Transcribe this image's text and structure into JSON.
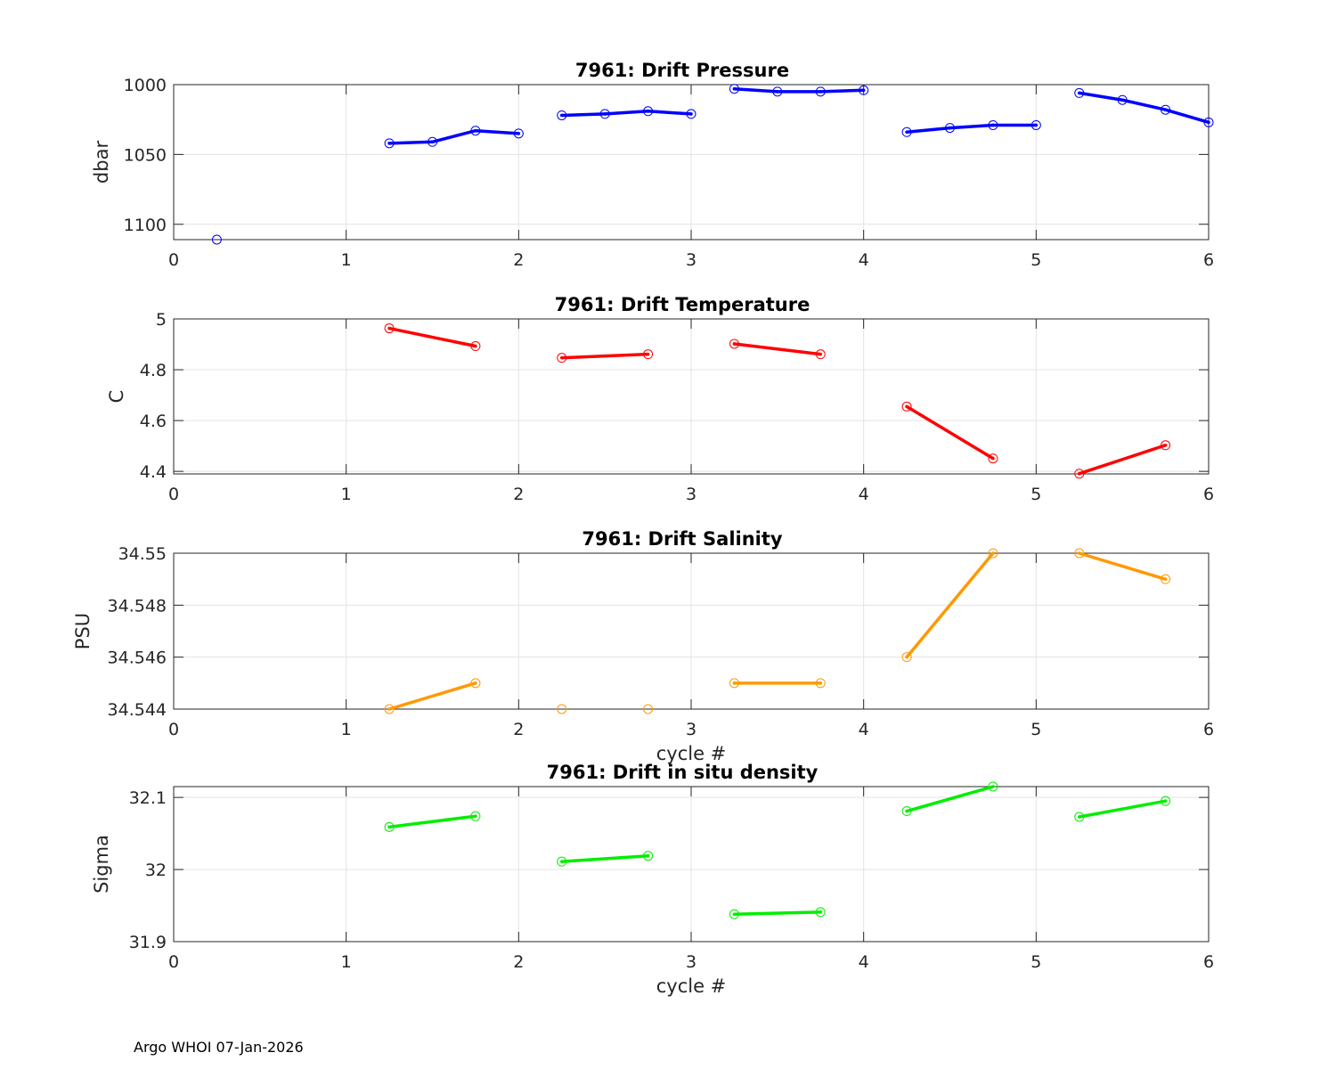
{
  "footer": "Argo WHOI 07-Jan-2026",
  "chart_data": [
    {
      "type": "line",
      "title": "7961: Drift Pressure",
      "xlabel": "",
      "ylabel": "dbar",
      "xlim": [
        0,
        6
      ],
      "ylim": [
        1000,
        1111
      ],
      "y_reversed": true,
      "xticks": [
        0,
        1,
        2,
        3,
        4,
        5,
        6
      ],
      "yticks": [
        1000,
        1050,
        1100
      ],
      "ytick_labels": [
        "1000",
        "1050",
        "1100"
      ],
      "grid": true,
      "color": "#0000ff",
      "segments": [
        [
          [
            0.25,
            1111
          ]
        ],
        [
          [
            1.25,
            1042
          ],
          [
            1.5,
            1041
          ],
          [
            1.75,
            1033
          ],
          [
            2.0,
            1035
          ]
        ],
        [
          [
            2.25,
            1022
          ],
          [
            2.5,
            1021
          ],
          [
            2.75,
            1019
          ],
          [
            3.0,
            1021
          ]
        ],
        [
          [
            3.25,
            1003
          ],
          [
            3.5,
            1005
          ],
          [
            3.75,
            1005
          ],
          [
            4.0,
            1004
          ]
        ],
        [
          [
            4.25,
            1034
          ],
          [
            4.5,
            1031
          ],
          [
            4.75,
            1029
          ],
          [
            5.0,
            1029
          ]
        ],
        [
          [
            5.25,
            1006
          ],
          [
            5.5,
            1011
          ],
          [
            5.75,
            1018
          ],
          [
            6.0,
            1027
          ]
        ]
      ]
    },
    {
      "type": "line",
      "title": "7961: Drift Temperature",
      "xlabel": "",
      "ylabel": "C",
      "xlim": [
        0,
        6
      ],
      "ylim": [
        4.39,
        5.0
      ],
      "y_reversed": false,
      "xticks": [
        0,
        1,
        2,
        3,
        4,
        5,
        6
      ],
      "yticks": [
        4.4,
        4.6,
        4.8,
        5.0
      ],
      "ytick_labels": [
        "4.4",
        "4.6",
        "4.8",
        "5"
      ],
      "grid": true,
      "color": "#ff0000",
      "segments": [
        [
          [
            1.25,
            4.963
          ],
          [
            1.75,
            4.893
          ]
        ],
        [
          [
            2.25,
            4.847
          ],
          [
            2.75,
            4.861
          ]
        ],
        [
          [
            3.25,
            4.902
          ],
          [
            3.75,
            4.861
          ]
        ],
        [
          [
            4.25,
            4.655
          ],
          [
            4.75,
            4.451
          ]
        ],
        [
          [
            5.25,
            4.391
          ],
          [
            5.75,
            4.503
          ]
        ]
      ]
    },
    {
      "type": "line",
      "title": "7961: Drift Salinity",
      "xlabel": "cycle #",
      "ylabel": "PSU",
      "xlim": [
        0,
        6
      ],
      "ylim": [
        34.544,
        34.55
      ],
      "y_reversed": false,
      "xticks": [
        0,
        1,
        2,
        3,
        4,
        5,
        6
      ],
      "yticks": [
        34.544,
        34.546,
        34.548,
        34.55
      ],
      "ytick_labels": [
        "34.544",
        "34.546",
        "34.548",
        "34.55"
      ],
      "grid": true,
      "color": "#ff9900",
      "segments": [
        [
          [
            1.25,
            34.544
          ],
          [
            1.75,
            34.545
          ]
        ],
        [
          [
            2.25,
            34.544
          ]
        ],
        [
          [
            2.75,
            34.544
          ]
        ],
        [
          [
            3.25,
            34.545
          ],
          [
            3.75,
            34.545
          ]
        ],
        [
          [
            4.25,
            34.546
          ],
          [
            4.75,
            34.55
          ]
        ],
        [
          [
            5.25,
            34.55
          ],
          [
            5.75,
            34.549
          ]
        ]
      ]
    },
    {
      "type": "line",
      "title": "7961: Drift in situ density",
      "xlabel": "cycle #",
      "ylabel": "Sigma",
      "xlim": [
        0,
        6
      ],
      "ylim": [
        31.9,
        32.115
      ],
      "y_reversed": false,
      "xticks": [
        0,
        1,
        2,
        3,
        4,
        5,
        6
      ],
      "yticks": [
        31.9,
        32.0,
        32.1
      ],
      "ytick_labels": [
        "31.9",
        "32",
        "32.1"
      ],
      "grid": true,
      "color": "#00ee00",
      "segments": [
        [
          [
            1.25,
            32.059
          ],
          [
            1.75,
            32.074
          ]
        ],
        [
          [
            2.25,
            32.011
          ],
          [
            2.75,
            32.019
          ]
        ],
        [
          [
            3.25,
            31.938
          ],
          [
            3.75,
            31.941
          ]
        ],
        [
          [
            4.25,
            32.081
          ],
          [
            4.75,
            32.115
          ]
        ],
        [
          [
            5.25,
            32.073
          ],
          [
            5.75,
            32.095
          ]
        ]
      ]
    }
  ]
}
